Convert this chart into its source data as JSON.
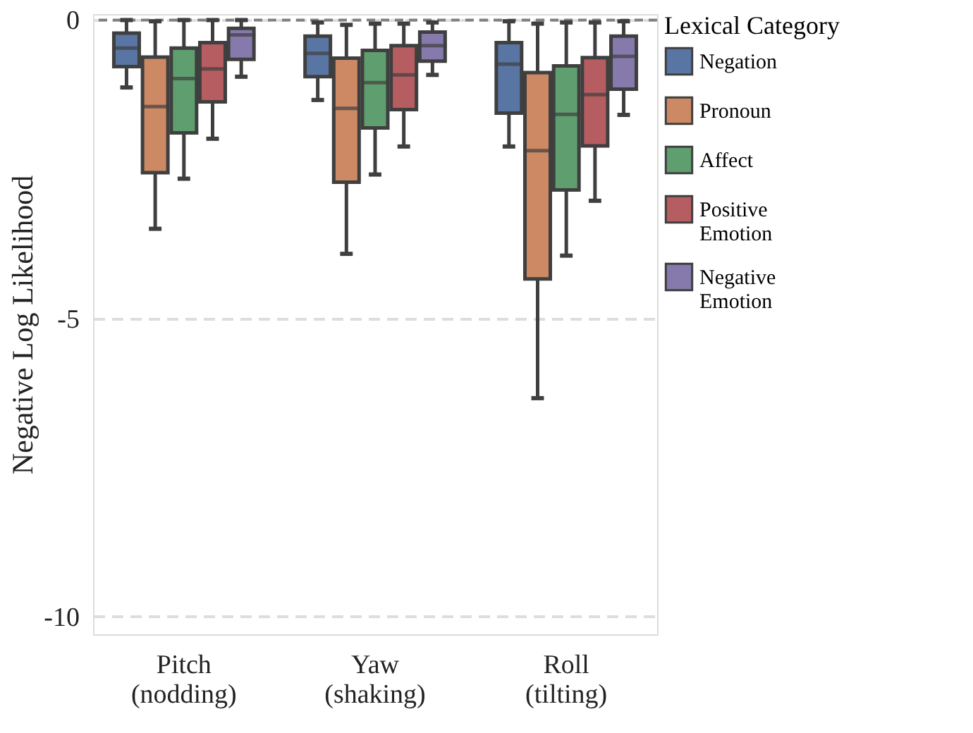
{
  "chart_data": {
    "type": "box",
    "categories": [
      "Pitch\n(nodding)",
      "Yaw\n(shaking)",
      "Roll\n(tilting)"
    ],
    "ylabel": "Negative Log Likelihood",
    "legend_title": "Lexical Category",
    "legend": "right",
    "grid": "y",
    "ylim": [
      -10.3,
      0.1
    ],
    "yticks": [
      0,
      -5,
      -10
    ],
    "ref_lines": [
      {
        "axis": "y",
        "value": 0,
        "color": "#808080",
        "line_style": "dashed"
      }
    ],
    "series": [
      {
        "name": "Negation",
        "color": "#5875a4",
        "boxes": [
          {
            "low": -1.13,
            "q1": -0.78,
            "median": -0.47,
            "q3": -0.22,
            "high": 0
          },
          {
            "low": -1.34,
            "q1": -0.95,
            "median": -0.56,
            "q3": -0.27,
            "high": -0.04
          },
          {
            "low": -2.12,
            "q1": -1.56,
            "median": -0.74,
            "q3": -0.38,
            "high": -0.02
          }
        ]
      },
      {
        "name": "Pronoun",
        "color": "#cc8963",
        "boxes": [
          {
            "low": -3.5,
            "q1": -2.56,
            "median": -1.45,
            "q3": -0.62,
            "high": -0.02
          },
          {
            "low": -3.92,
            "q1": -2.72,
            "median": -1.48,
            "q3": -0.64,
            "high": -0.08
          },
          {
            "low": -6.34,
            "q1": -4.34,
            "median": -2.19,
            "q3": -0.88,
            "high": -0.06
          }
        ]
      },
      {
        "name": "Affect",
        "color": "#5f9e6e",
        "boxes": [
          {
            "low": -2.66,
            "q1": -1.89,
            "median": -0.98,
            "q3": -0.47,
            "high": 0
          },
          {
            "low": -2.59,
            "q1": -1.81,
            "median": -1.05,
            "q3": -0.51,
            "high": -0.06
          },
          {
            "low": -3.95,
            "q1": -2.85,
            "median": -1.58,
            "q3": -0.77,
            "high": -0.04
          }
        ]
      },
      {
        "name": "Positive\nEmotion",
        "color": "#b55d60",
        "boxes": [
          {
            "low": -1.99,
            "q1": -1.37,
            "median": -0.82,
            "q3": -0.38,
            "high": 0
          },
          {
            "low": -2.12,
            "q1": -1.5,
            "median": -0.92,
            "q3": -0.43,
            "high": -0.06
          },
          {
            "low": -3.03,
            "q1": -2.11,
            "median": -1.25,
            "q3": -0.63,
            "high": -0.04
          }
        ]
      },
      {
        "name": "Negative\nEmotion",
        "color": "#857aab",
        "boxes": [
          {
            "low": -0.95,
            "q1": -0.66,
            "median": -0.25,
            "q3": -0.14,
            "high": 0
          },
          {
            "low": -0.92,
            "q1": -0.69,
            "median": -0.43,
            "q3": -0.2,
            "high": -0.04
          },
          {
            "low": -1.59,
            "q1": -1.16,
            "median": -0.61,
            "q3": -0.27,
            "high": -0.02
          }
        ]
      }
    ]
  }
}
